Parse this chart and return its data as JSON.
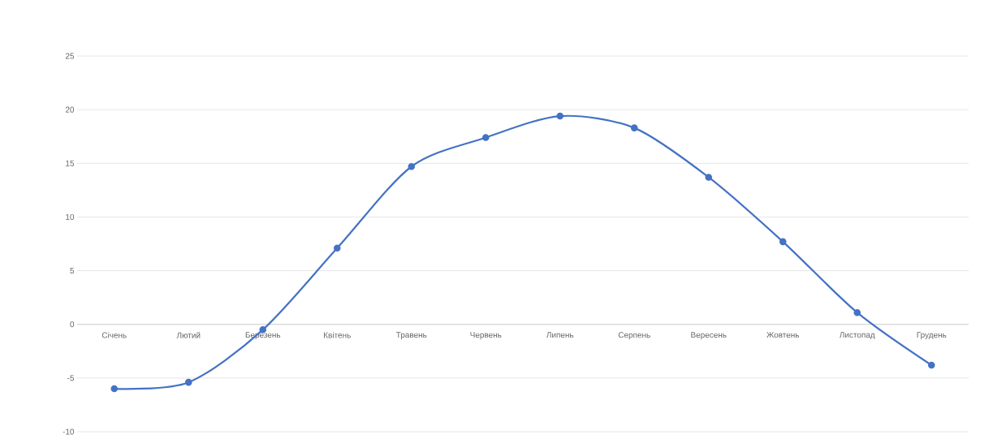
{
  "chart_data": {
    "type": "line",
    "categories": [
      "Січень",
      "Лютий",
      "Березень",
      "Квітень",
      "Травень",
      "Червень",
      "Липень",
      "Серпень",
      "Вересень",
      "Жовтень",
      "Листопад",
      "Грудень"
    ],
    "series": [
      {
        "color": "#4472c4",
        "values": [
          -6.0,
          -5.4,
          -0.5,
          7.1,
          14.7,
          17.4,
          19.4,
          18.3,
          13.7,
          7.7,
          1.1,
          -3.8
        ]
      }
    ],
    "ylim": [
      -10,
      25
    ],
    "yticks": [
      -10,
      -5,
      0,
      5,
      10,
      15,
      20,
      25
    ],
    "grid": "y",
    "marker": "circle",
    "line_style": "solid"
  }
}
